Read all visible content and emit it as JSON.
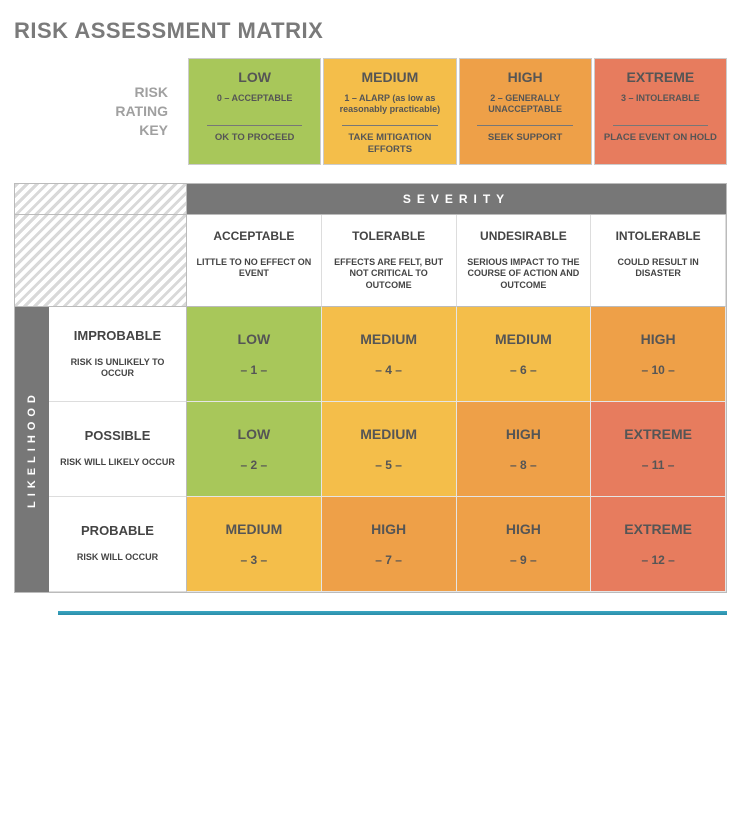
{
  "title": "RISK ASSESSMENT MATRIX",
  "keyLabel": {
    "l1": "RISK",
    "l2": "RATING",
    "l3": "KEY"
  },
  "colors": {
    "low": "#a8c75a",
    "medium": "#f4be4a",
    "high": "#eea048",
    "extreme": "#e77c5e",
    "headerBar": "#777777",
    "footerBar": "#3aa6c2"
  },
  "keyCells": [
    {
      "title": "LOW",
      "sub": "0 – ACCEPTABLE",
      "action": "OK TO PROCEED",
      "colorKey": "low"
    },
    {
      "title": "MEDIUM",
      "sub": "1 – ALARP (as low as reasonably practicable)",
      "action": "TAKE MITIGATION EFFORTS",
      "colorKey": "medium"
    },
    {
      "title": "HIGH",
      "sub": "2 – GENERALLY UNACCEPTABLE",
      "action": "SEEK SUPPORT",
      "colorKey": "high"
    },
    {
      "title": "EXTREME",
      "sub": "3 – INTOLERABLE",
      "action": "PLACE EVENT ON HOLD",
      "colorKey": "extreme"
    }
  ],
  "severityHeader": "SEVERITY",
  "likelihoodHeader": "LIKELIHOOD",
  "severityCols": [
    {
      "title": "ACCEPTABLE",
      "desc": "LITTLE TO NO EFFECT ON EVENT"
    },
    {
      "title": "TOLERABLE",
      "desc": "EFFECTS ARE FELT, BUT NOT CRITICAL TO OUTCOME"
    },
    {
      "title": "UNDESIRABLE",
      "desc": "SERIOUS IMPACT TO THE COURSE OF ACTION AND OUTCOME"
    },
    {
      "title": "INTOLERABLE",
      "desc": "COULD RESULT IN DISASTER"
    }
  ],
  "likelihoodRows": [
    {
      "title": "IMPROBABLE",
      "desc": "RISK IS UNLIKELY TO OCCUR"
    },
    {
      "title": "POSSIBLE",
      "desc": "RISK WILL LIKELY OCCUR"
    },
    {
      "title": "PROBABLE",
      "desc": "RISK WILL OCCUR"
    }
  ],
  "cells": [
    [
      {
        "level": "LOW",
        "num": "– 1 –",
        "colorKey": "low"
      },
      {
        "level": "MEDIUM",
        "num": "– 4 –",
        "colorKey": "medium"
      },
      {
        "level": "MEDIUM",
        "num": "– 6 –",
        "colorKey": "medium"
      },
      {
        "level": "HIGH",
        "num": "– 10 –",
        "colorKey": "high"
      }
    ],
    [
      {
        "level": "LOW",
        "num": "– 2 –",
        "colorKey": "low"
      },
      {
        "level": "MEDIUM",
        "num": "– 5 –",
        "colorKey": "medium"
      },
      {
        "level": "HIGH",
        "num": "– 8 –",
        "colorKey": "high"
      },
      {
        "level": "EXTREME",
        "num": "– 11 –",
        "colorKey": "extreme"
      }
    ],
    [
      {
        "level": "MEDIUM",
        "num": "– 3 –",
        "colorKey": "medium"
      },
      {
        "level": "HIGH",
        "num": "– 7 –",
        "colorKey": "high"
      },
      {
        "level": "HIGH",
        "num": "– 9 –",
        "colorKey": "high"
      },
      {
        "level": "EXTREME",
        "num": "– 12 –",
        "colorKey": "extreme"
      }
    ]
  ]
}
